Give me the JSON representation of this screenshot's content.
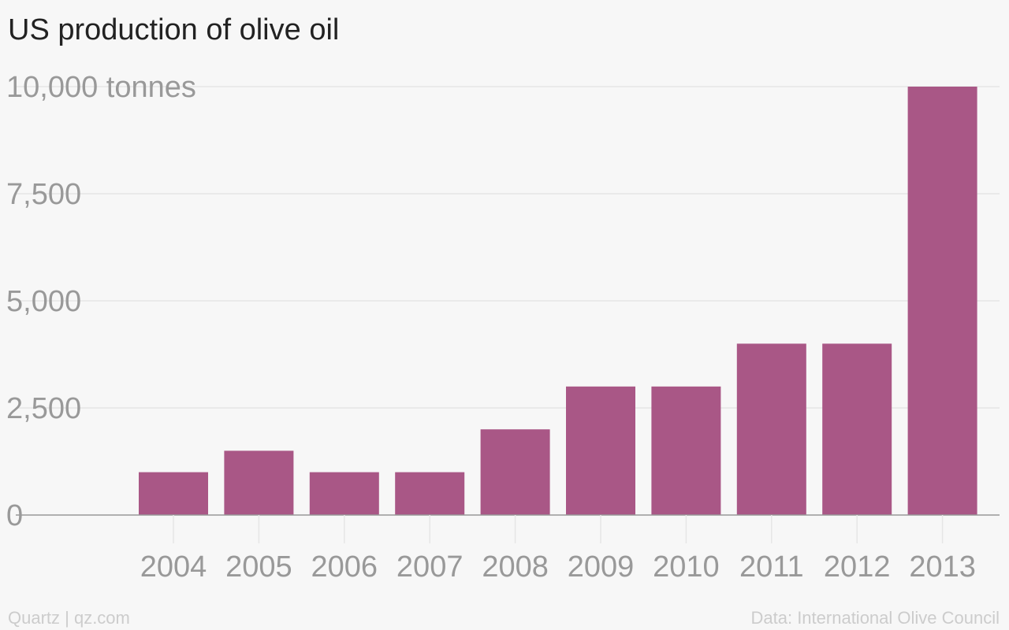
{
  "chart_data": {
    "type": "bar",
    "title": "US production of olive oil",
    "unit_label": "tonnes",
    "categories": [
      "2004",
      "2005",
      "2006",
      "2007",
      "2008",
      "2009",
      "2010",
      "2011",
      "2012",
      "2013"
    ],
    "values": [
      1000,
      1500,
      1000,
      1000,
      2000,
      3000,
      3000,
      4000,
      4000,
      10000
    ],
    "ylim": [
      0,
      10000
    ],
    "yticks": [
      {
        "value": 0,
        "label": "0"
      },
      {
        "value": 2500,
        "label": "2,500"
      },
      {
        "value": 5000,
        "label": "5,000"
      },
      {
        "value": 7500,
        "label": "7,500"
      },
      {
        "value": 10000,
        "label": "10,000 tonnes"
      }
    ],
    "grid": true,
    "bar_color": "#a95786",
    "xlabel": "",
    "ylabel": ""
  },
  "footer": {
    "credit": "Quartz | qz.com",
    "source": "Data: International Olive Council"
  },
  "colors": {
    "background": "#f7f7f7",
    "grid": "#e6e6e6",
    "axis": "#999999",
    "title": "#222222",
    "tick_text": "#999999",
    "footer_text": "#cccccc"
  }
}
